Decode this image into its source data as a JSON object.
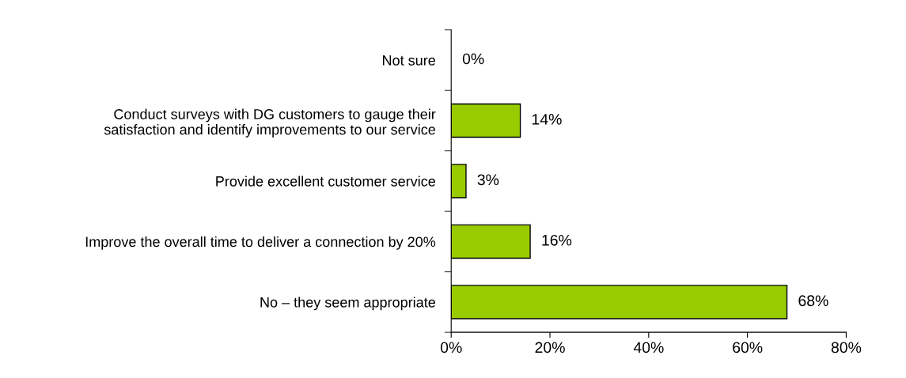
{
  "chart_data": {
    "type": "bar",
    "orientation": "horizontal",
    "categories": [
      "Not sure",
      "Conduct surveys with DG customers to gauge their\nsatisfaction and identify improvements to our service",
      "Provide excellent customer service",
      "Improve the overall time to deliver a connection by 20%",
      "No – they seem appropriate"
    ],
    "values": [
      0,
      14,
      3,
      16,
      68
    ],
    "value_labels": [
      "0%",
      "14%",
      "3%",
      "16%",
      "68%"
    ],
    "color": "#99cc00",
    "xlim": [
      0,
      80
    ],
    "xticks": [
      {
        "value": 0,
        "label": "0%"
      },
      {
        "value": 20,
        "label": "20%"
      },
      {
        "value": 40,
        "label": "40%"
      },
      {
        "value": 60,
        "label": "60%"
      },
      {
        "value": 80,
        "label": "80%"
      }
    ],
    "grid": false,
    "legend": false
  }
}
